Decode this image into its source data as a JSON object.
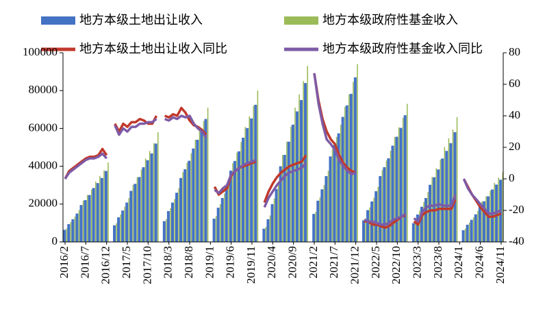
{
  "chart_data": {
    "type": "bar",
    "categories": [
      "2016/2",
      null,
      null,
      null,
      null,
      "2016/7",
      null,
      null,
      null,
      null,
      "2016/12",
      null,
      null,
      null,
      null,
      "2017/5",
      null,
      null,
      null,
      null,
      "2017/10",
      null,
      null,
      null,
      null,
      "2018/3",
      null,
      null,
      null,
      null,
      "2018/8",
      null,
      null,
      null,
      null,
      "2019/1",
      null,
      null,
      null,
      null,
      "2019/6",
      null,
      null,
      null,
      null,
      "2019/11",
      null,
      null,
      null,
      null,
      "2020/4",
      null,
      null,
      null,
      null,
      "2020/9",
      null,
      null,
      null,
      null,
      "2021/2",
      null,
      null,
      null,
      null,
      "2021/7",
      null,
      null,
      null,
      null,
      "2021/12",
      null,
      null,
      null,
      null,
      "2022/5",
      null,
      null,
      null,
      null,
      "2022/10",
      null,
      null,
      null,
      null,
      "2023/3",
      null,
      null,
      null,
      null,
      "2023/8",
      null,
      null,
      null,
      null,
      "2024/1",
      null,
      null,
      null,
      null,
      "2024/6",
      null,
      null,
      null,
      null,
      "2024/11"
    ],
    "series": [
      {
        "name": "地方本级土地出让收入",
        "color": "#4472c4",
        "type": "bar",
        "values": [
          6400,
          9400,
          12000,
          15000,
          19500,
          22100,
          24800,
          28500,
          31100,
          33800,
          37500,
          null,
          8800,
          13000,
          16600,
          20800,
          27000,
          30700,
          34300,
          39500,
          43200,
          46800,
          52000,
          null,
          11000,
          16300,
          20800,
          26000,
          33800,
          38400,
          42900,
          49400,
          54000,
          58500,
          65000,
          null,
          12300,
          18100,
          23200,
          29000,
          37700,
          42800,
          47900,
          55100,
          60200,
          65300,
          72500,
          null,
          7000,
          12000,
          20000,
          28000,
          40000,
          46000,
          53000,
          62000,
          69000,
          75000,
          84000,
          null,
          14800,
          21800,
          27800,
          34800,
          45200,
          51300,
          57400,
          66100,
          72200,
          78300,
          87000,
          null,
          11400,
          16800,
          21400,
          26800,
          34800,
          39500,
          44200,
          50900,
          55600,
          60300,
          67000,
          null,
          9900,
          14500,
          18600,
          23200,
          30200,
          34200,
          38300,
          44100,
          48100,
          52200,
          58000,
          null,
          6200,
          9100,
          11700,
          14600,
          19000,
          21500,
          24100,
          27700,
          30300,
          32900
        ]
      },
      {
        "name": "地方本级政府性基金收入",
        "color": "#9bbb59",
        "type": "bar",
        "values": [
          7100,
          10500,
          13400,
          16800,
          21800,
          24800,
          27700,
          31900,
          34900,
          37800,
          42000,
          null,
          9900,
          14500,
          18600,
          23200,
          30200,
          34200,
          38300,
          44100,
          48100,
          52200,
          58000,
          null,
          12100,
          17800,
          22700,
          28400,
          36900,
          41900,
          46900,
          54000,
          58900,
          63900,
          71000,
          null,
          13600,
          20000,
          25600,
          32000,
          41600,
          47200,
          52800,
          60800,
          66400,
          72000,
          80000,
          null,
          8000,
          14000,
          23000,
          32000,
          46000,
          53000,
          61000,
          71000,
          78000,
          85000,
          93000,
          null,
          16000,
          23500,
          30100,
          37600,
          48900,
          55500,
          62000,
          71400,
          78000,
          84600,
          94000,
          null,
          12400,
          18300,
          23400,
          29200,
          38000,
          43100,
          48200,
          55500,
          60600,
          65700,
          73000,
          null,
          11200,
          16500,
          21100,
          26400,
          34300,
          38900,
          43600,
          50200,
          54800,
          59400,
          66000,
          null,
          7000,
          10300,
          13100,
          16400,
          21300,
          24200,
          27100,
          31200,
          34000,
          36900
        ]
      },
      {
        "name": "地方本级土地出让收入同比",
        "color": "#c0392b",
        "type": "line",
        "axis": "y2",
        "values": [
          0,
          5,
          7,
          9,
          11,
          13,
          14,
          14,
          15,
          19,
          15,
          null,
          35,
          30,
          35,
          33,
          36,
          36,
          38,
          37,
          35,
          35,
          40,
          null,
          40,
          39,
          41,
          40,
          45,
          42,
          37,
          34,
          33,
          31,
          28,
          null,
          -5,
          -10,
          -8,
          -6,
          2,
          5,
          7,
          8,
          9,
          10,
          11,
          null,
          -15,
          -8,
          -3,
          1,
          4,
          6,
          8,
          9,
          10,
          11,
          15,
          null,
          67,
          50,
          38,
          30,
          25,
          22,
          15,
          10,
          7,
          5,
          4,
          null,
          -27,
          -27,
          -29,
          -29,
          -30,
          -31,
          -30,
          -28,
          -26,
          -24,
          -23,
          null,
          -27,
          -29,
          -23,
          -21,
          -20,
          -20,
          -19,
          -19,
          -19,
          -19,
          -13,
          null,
          0,
          -5,
          -10,
          -14,
          -18,
          -21,
          -24,
          -24,
          -23,
          -22
        ]
      },
      {
        "name": "地方本级政府性基金收入同比",
        "color": "#7d5ba6",
        "type": "line",
        "axis": "y2",
        "values": [
          0,
          4,
          6,
          8,
          10,
          12,
          13,
          13,
          14,
          16,
          13,
          null,
          34,
          28,
          32,
          30,
          33,
          33,
          35,
          35,
          36,
          36,
          38,
          null,
          38,
          37,
          39,
          38,
          40,
          39,
          40,
          35,
          32,
          30,
          26,
          null,
          -7,
          -9,
          -6,
          -4,
          3,
          5,
          7,
          9,
          10,
          11,
          12,
          null,
          -18,
          -12,
          -8,
          -4,
          -1,
          2,
          4,
          5,
          6,
          7,
          10,
          null,
          67,
          48,
          35,
          25,
          22,
          18,
          12,
          8,
          5,
          3,
          4,
          null,
          -26,
          -27,
          -27,
          -28,
          -29,
          -29,
          -28,
          -26,
          -25,
          -24,
          -22,
          null,
          -25,
          -27,
          -21,
          -18,
          -17,
          -17,
          -16,
          -17,
          -17,
          -17,
          -10,
          null,
          0,
          -6,
          -10,
          -13,
          -16,
          -19,
          -22,
          -22,
          -21,
          -20
        ]
      }
    ],
    "ylim": [
      0,
      100000
    ],
    "yticks": [
      0,
      20000,
      40000,
      60000,
      80000,
      100000
    ],
    "y2lim": [
      -40,
      80
    ],
    "y2ticks": [
      -40,
      -20,
      0,
      20,
      40,
      60,
      80
    ],
    "grid": false
  }
}
